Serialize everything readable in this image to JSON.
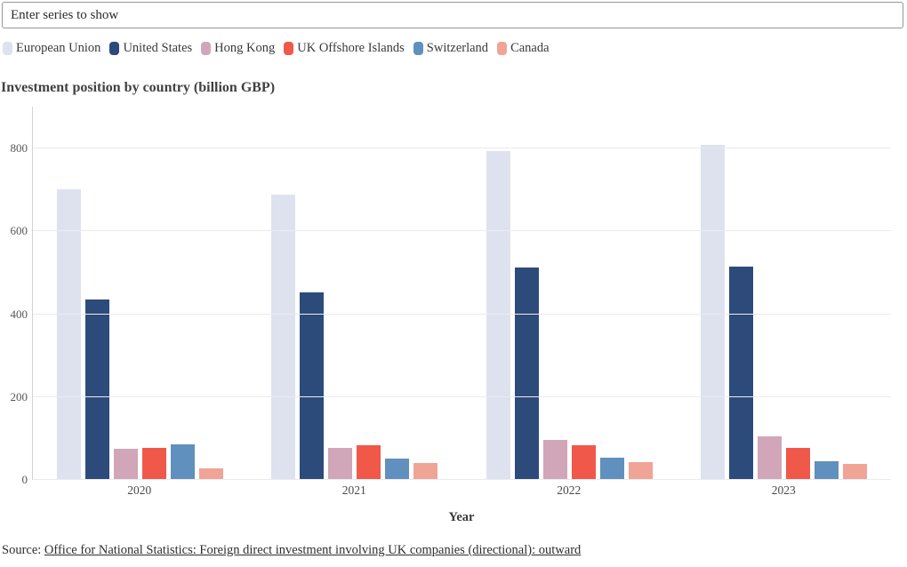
{
  "controls": {
    "filter_placeholder": "Enter series to show"
  },
  "chart_data": {
    "type": "bar",
    "title": "Investment position by country (billion GBP)",
    "xlabel": "Year",
    "ylabel": "",
    "categories": [
      "2020",
      "2021",
      "2022",
      "2023"
    ],
    "series": [
      {
        "name": "European Union",
        "color": "#dde2ee",
        "values": [
          702,
          689,
          793,
          809
        ]
      },
      {
        "name": "United States",
        "color": "#2d4b7a",
        "values": [
          435,
          452,
          513,
          514
        ]
      },
      {
        "name": "Hong Kong",
        "color": "#d0a6b8",
        "values": [
          76,
          77,
          96,
          105
        ]
      },
      {
        "name": "UK Offshore Islands",
        "color": "#f0584a",
        "values": [
          78,
          83,
          84,
          77
        ]
      },
      {
        "name": "Switzerland",
        "color": "#6090bd",
        "values": [
          86,
          52,
          53,
          46
        ]
      },
      {
        "name": "Canada",
        "color": "#f0a496",
        "values": [
          27,
          41,
          43,
          38
        ]
      }
    ],
    "yticks": [
      0,
      200,
      400,
      600,
      800
    ],
    "ylim": [
      0,
      901
    ],
    "grid": true,
    "legend_position": "top"
  },
  "source": {
    "prefix": "Source: ",
    "link_text": "Office for National Statistics: Foreign direct investment involving UK companies (directional): outward"
  }
}
